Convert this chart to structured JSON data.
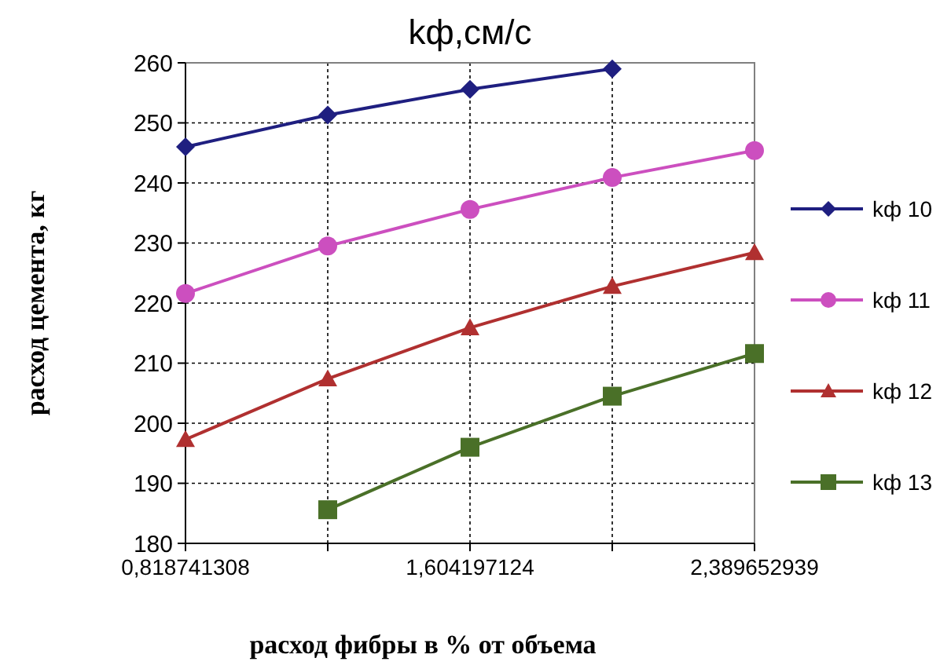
{
  "chart_data": {
    "type": "line",
    "title": "kф,см/с",
    "xlabel": "расход фибры в % от объема",
    "ylabel": "расход цемента, кг",
    "categories": [
      "0,818741308",
      null,
      "1,604197124",
      null,
      "2,389652939"
    ],
    "ylim": [
      180,
      260
    ],
    "yticks": [
      180,
      190,
      200,
      210,
      220,
      230,
      240,
      250,
      260
    ],
    "grid": true,
    "legend": "right",
    "line_style": "solid",
    "series": [
      {
        "name": "kф 10",
        "color": "#1f1f80",
        "marker": "diamond",
        "values": [
          246,
          251.3,
          255.6,
          259,
          null
        ]
      },
      {
        "name": "kф 11",
        "color": "#cc4fbf",
        "marker": "circle",
        "values": [
          221.6,
          229.5,
          235.6,
          240.9,
          245.4
        ]
      },
      {
        "name": "kф 12",
        "color": "#b03030",
        "marker": "triangle",
        "values": [
          197.3,
          207.4,
          215.9,
          222.8,
          228.4
        ]
      },
      {
        "name": "kф 13",
        "color": "#4a7028",
        "marker": "square",
        "values": [
          null,
          185.6,
          196,
          204.5,
          211.6
        ]
      }
    ]
  }
}
